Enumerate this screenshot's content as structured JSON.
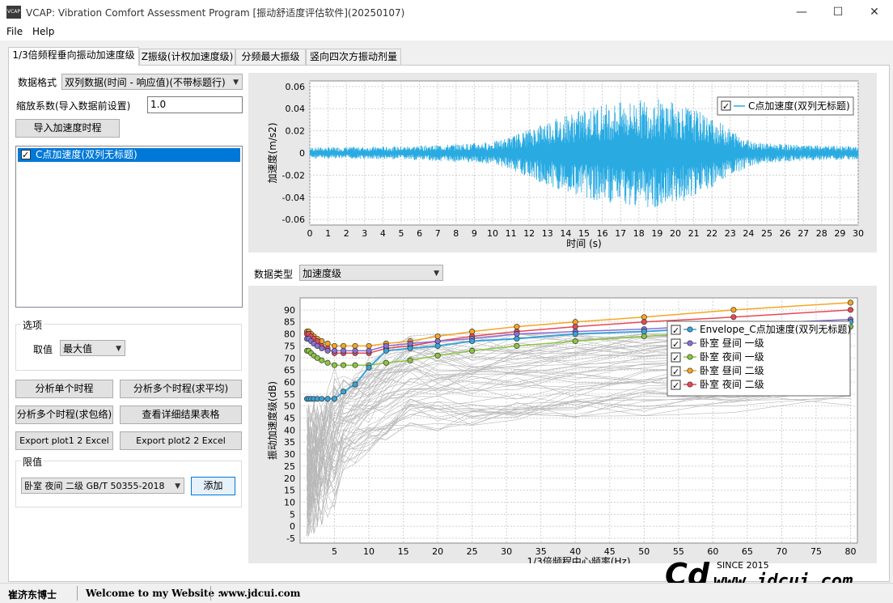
{
  "window": {
    "title": "VCAP: Vibration Comfort Assessment Program [振动舒适度评估软件](20250107)",
    "icon_text": "VCAP",
    "minimize": "—",
    "maximize": "☐",
    "close": "✕"
  },
  "menu": {
    "file": "File",
    "help": "Help"
  },
  "tabs": [
    "1/3倍频程垂向振动加速度级",
    "Z振级(计权加速度级)",
    "分频最大振级",
    "竖向四次方振动剂量"
  ],
  "left": {
    "format_label": "数据格式",
    "format_value": "双列数据(时间 - 响应值)(不带标题行)",
    "scale_label": "缩放系数(导入数据前设置)",
    "scale_value": "1.0",
    "import_button": "导入加速度时程",
    "list_items": [
      {
        "label": "C点加速度(双列无标题)",
        "checked": true
      }
    ],
    "options_title": "选项",
    "take_label": "取值",
    "take_value": "最大值",
    "btn_single": "分析单个时程",
    "btn_multi_avg": "分析多个时程(求平均)",
    "btn_multi_env": "分析多个时程(求包络)",
    "btn_details": "查看详细结果表格",
    "btn_export1": "Export plot1 2 Excel",
    "btn_export2": "Export plot2 2 Excel",
    "limit_title": "限值",
    "limit_value": "卧室 夜间 二级 GB/T 50355-2018",
    "add_button": "添加"
  },
  "chart_type_label": "数据类型",
  "chart_type_value": "加速度级",
  "status": {
    "author": "崔济东博士",
    "welcome": "Welcome to my Website :",
    "site": "www.jdcui.com"
  },
  "watermark": {
    "since": "SINCE 2015",
    "url": "www.jdcui.com",
    "logo": "Cd"
  },
  "colors": {
    "signal": "#29abe2",
    "grid": "#d0d0d0",
    "envelope": "#3aa3d8",
    "day1": "#8a6fd6",
    "night1": "#8cc63f",
    "day2": "#f5a623",
    "night2": "#e84855",
    "gray": "#b8b8b8"
  },
  "chart_data": [
    {
      "type": "line",
      "title": "",
      "xlabel": "时间 (s)",
      "ylabel": "加速度(m/s2)",
      "xlim": [
        0,
        30
      ],
      "ylim": [
        -0.065,
        0.065
      ],
      "x_ticks": [
        0,
        1,
        2,
        3,
        4,
        5,
        6,
        7,
        8,
        9,
        10,
        11,
        12,
        13,
        14,
        15,
        16,
        17,
        18,
        19,
        20,
        21,
        22,
        23,
        24,
        25,
        26,
        27,
        28,
        29,
        30
      ],
      "y_ticks": [
        -0.06,
        -0.04,
        -0.02,
        0,
        0.02,
        0.04,
        0.06
      ],
      "y_tick_labels": [
        "-0.06",
        "-0.04",
        "-0.02",
        "0",
        "0.02",
        "0.04",
        "0.06"
      ],
      "legend_position": "top-right",
      "series": [
        {
          "name": "C点加速度(双列无标题)",
          "envelope": [
            [
              0,
              0.005
            ],
            [
              5,
              0.006
            ],
            [
              8,
              0.008
            ],
            [
              10,
              0.01
            ],
            [
              11,
              0.015
            ],
            [
              12,
              0.022
            ],
            [
              13,
              0.03
            ],
            [
              14,
              0.035
            ],
            [
              15,
              0.04
            ],
            [
              16,
              0.045
            ],
            [
              17,
              0.046
            ],
            [
              18,
              0.048
            ],
            [
              19,
              0.05
            ],
            [
              20,
              0.046
            ],
            [
              21,
              0.04
            ],
            [
              22,
              0.032
            ],
            [
              23,
              0.022
            ],
            [
              24,
              0.012
            ],
            [
              25,
              0.009
            ],
            [
              27,
              0.007
            ],
            [
              30,
              0.006
            ]
          ]
        }
      ]
    },
    {
      "type": "line",
      "title": "",
      "xlabel": "1/3倍频程中心频率(Hz)",
      "ylabel": "振动加速度级(dB)",
      "xlim": [
        0,
        81
      ],
      "ylim": [
        -7,
        95
      ],
      "x_ticks": [
        5,
        10,
        15,
        20,
        25,
        30,
        35,
        40,
        45,
        50,
        55,
        60,
        65,
        70,
        75,
        80
      ],
      "y_ticks": [
        -5,
        0,
        5,
        10,
        15,
        20,
        25,
        30,
        35,
        40,
        45,
        50,
        55,
        60,
        65,
        70,
        75,
        80,
        85,
        90
      ],
      "legend_position": "top-right",
      "frequencies": [
        1,
        1.25,
        1.6,
        2,
        2.5,
        3.15,
        4,
        5,
        6.3,
        8,
        10,
        12.5,
        16,
        20,
        25,
        31.5,
        40,
        50,
        63,
        80
      ],
      "series": [
        {
          "name": "Envelope_C点加速度(双列无标题)",
          "values": [
            53,
            53,
            53,
            53,
            53,
            53,
            53,
            53,
            56,
            59,
            66,
            73,
            74,
            75,
            77,
            78,
            80,
            81,
            83,
            85
          ]
        },
        {
          "name": "卧室 昼间 一级",
          "values": [
            78,
            78,
            77,
            76,
            75,
            74,
            73,
            73,
            73,
            73,
            73,
            75,
            76,
            77,
            78,
            80,
            81,
            82,
            84,
            86
          ]
        },
        {
          "name": "卧室 夜间 一级",
          "values": [
            73,
            73,
            72,
            71,
            70,
            69,
            68,
            67,
            67,
            67,
            67,
            68,
            69,
            71,
            73,
            75,
            77,
            79,
            81,
            83
          ]
        },
        {
          "name": "卧室 昼间 二级",
          "values": [
            81,
            81,
            80,
            79,
            78,
            77,
            76,
            75,
            75,
            75,
            75,
            76,
            77,
            79,
            81,
            83,
            85,
            87,
            90,
            93
          ]
        },
        {
          "name": "卧室 夜间 二级",
          "values": [
            80,
            80,
            79,
            78,
            77,
            75,
            74,
            72,
            72,
            72,
            72,
            74,
            75,
            77,
            79,
            81,
            83,
            85,
            87,
            90
          ]
        }
      ]
    }
  ]
}
